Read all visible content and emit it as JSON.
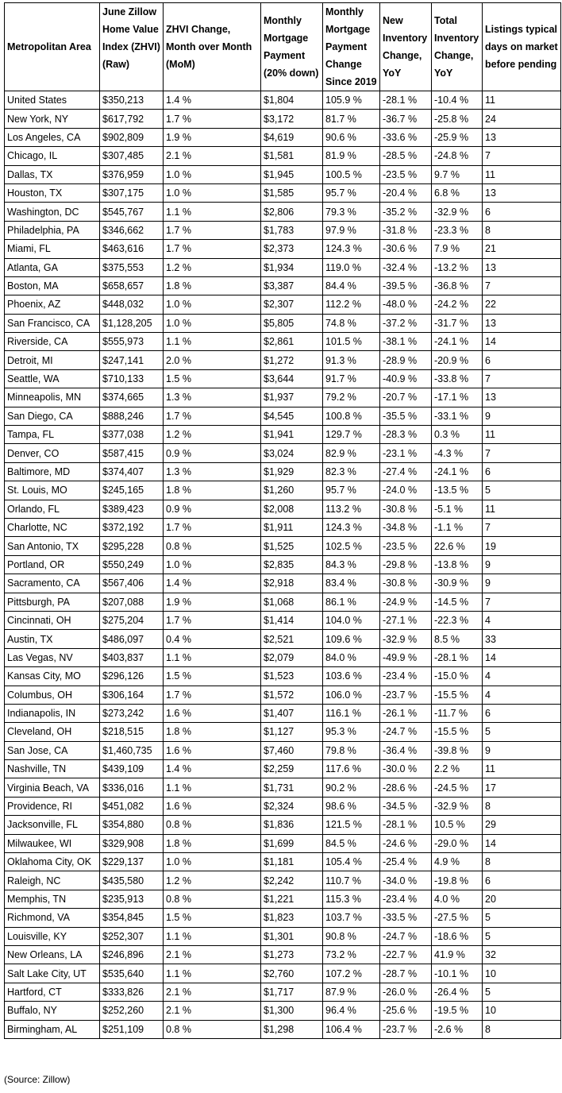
{
  "table": {
    "header": [
      "Metropolitan Area",
      "June Zillow Home Value Index (ZHVI) (Raw)",
      "ZHVI Change, Month over Month (MoM)",
      "Monthly Mortgage Payment (20% down)",
      "Monthly Mortgage Payment Change Since 2019",
      "New Inventory Change, YoY",
      "Total Inventory Change, YoY",
      "Listings typical days on market before pending"
    ],
    "rows": [
      [
        "United States",
        "$350,213",
        "1.4 %",
        "$1,804",
        "105.9 %",
        "-28.1 %",
        "-10.4 %",
        "11"
      ],
      [
        "New York, NY",
        "$617,792",
        "1.7 %",
        "$3,172",
        "81.7 %",
        "-36.7 %",
        "-25.8 %",
        "24"
      ],
      [
        "Los Angeles, CA",
        "$902,809",
        "1.9 %",
        "$4,619",
        "90.6 %",
        "-33.6 %",
        "-25.9 %",
        "13"
      ],
      [
        "Chicago, IL",
        "$307,485",
        "2.1 %",
        "$1,581",
        "81.9 %",
        "-28.5 %",
        "-24.8 %",
        "7"
      ],
      [
        "Dallas, TX",
        "$376,959",
        "1.0 %",
        "$1,945",
        "100.5 %",
        "-23.5 %",
        "9.7 %",
        "11"
      ],
      [
        "Houston, TX",
        "$307,175",
        "1.0 %",
        "$1,585",
        "95.7 %",
        "-20.4 %",
        "6.8 %",
        "13"
      ],
      [
        "Washington, DC",
        "$545,767",
        "1.1 %",
        "$2,806",
        "79.3 %",
        "-35.2 %",
        "-32.9 %",
        "6"
      ],
      [
        "Philadelphia, PA",
        "$346,662",
        "1.7 %",
        "$1,783",
        "97.9 %",
        "-31.8 %",
        "-23.3 %",
        "8"
      ],
      [
        "Miami, FL",
        "$463,616",
        "1.7 %",
        "$2,373",
        "124.3 %",
        "-30.6 %",
        "7.9 %",
        "21"
      ],
      [
        "Atlanta, GA",
        "$375,553",
        "1.2 %",
        "$1,934",
        "119.0 %",
        "-32.4 %",
        "-13.2 %",
        "13"
      ],
      [
        "Boston, MA",
        "$658,657",
        "1.8 %",
        "$3,387",
        "84.4 %",
        "-39.5 %",
        "-36.8 %",
        "7"
      ],
      [
        "Phoenix, AZ",
        "$448,032",
        "1.0 %",
        "$2,307",
        "112.2 %",
        "-48.0 %",
        "-24.2 %",
        "22"
      ],
      [
        "San Francisco, CA",
        "$1,128,205",
        "1.0 %",
        "$5,805",
        "74.8 %",
        "-37.2 %",
        "-31.7 %",
        "13"
      ],
      [
        "Riverside, CA",
        "$555,973",
        "1.1 %",
        "$2,861",
        "101.5 %",
        "-38.1 %",
        "-24.1 %",
        "14"
      ],
      [
        "Detroit, MI",
        "$247,141",
        "2.0 %",
        "$1,272",
        "91.3 %",
        "-28.9 %",
        "-20.9 %",
        "6"
      ],
      [
        "Seattle, WA",
        "$710,133",
        "1.5 %",
        "$3,644",
        "91.7 %",
        "-40.9 %",
        "-33.8 %",
        "7"
      ],
      [
        "Minneapolis, MN",
        "$374,665",
        "1.3 %",
        "$1,937",
        "79.2 %",
        "-20.7 %",
        "-17.1 %",
        "13"
      ],
      [
        "San Diego, CA",
        "$888,246",
        "1.7 %",
        "$4,545",
        "100.8 %",
        "-35.5 %",
        "-33.1 %",
        "9"
      ],
      [
        "Tampa, FL",
        "$377,038",
        "1.2 %",
        "$1,941",
        "129.7 %",
        "-28.3 %",
        "0.3 %",
        "11"
      ],
      [
        "Denver, CO",
        "$587,415",
        "0.9 %",
        "$3,024",
        "82.9 %",
        "-23.1 %",
        "-4.3 %",
        "7"
      ],
      [
        "Baltimore, MD",
        "$374,407",
        "1.3 %",
        "$1,929",
        "82.3 %",
        "-27.4 %",
        "-24.1 %",
        "6"
      ],
      [
        "St. Louis, MO",
        "$245,165",
        "1.8 %",
        "$1,260",
        "95.7 %",
        "-24.0 %",
        "-13.5 %",
        "5"
      ],
      [
        "Orlando, FL",
        "$389,423",
        "0.9 %",
        "$2,008",
        "113.2 %",
        "-30.8 %",
        "-5.1 %",
        "11"
      ],
      [
        "Charlotte, NC",
        "$372,192",
        "1.7 %",
        "$1,911",
        "124.3 %",
        "-34.8 %",
        "-1.1 %",
        "7"
      ],
      [
        "San Antonio, TX",
        "$295,228",
        "0.8 %",
        "$1,525",
        "102.5 %",
        "-23.5 %",
        "22.6 %",
        "19"
      ],
      [
        "Portland, OR",
        "$550,249",
        "1.0 %",
        "$2,835",
        "84.3 %",
        "-29.8 %",
        "-13.8 %",
        "9"
      ],
      [
        "Sacramento, CA",
        "$567,406",
        "1.4 %",
        "$2,918",
        "83.4 %",
        "-30.8 %",
        "-30.9 %",
        "9"
      ],
      [
        "Pittsburgh, PA",
        "$207,088",
        "1.9 %",
        "$1,068",
        "86.1 %",
        "-24.9 %",
        "-14.5 %",
        "7"
      ],
      [
        "Cincinnati, OH",
        "$275,204",
        "1.7 %",
        "$1,414",
        "104.0 %",
        "-27.1 %",
        "-22.3 %",
        "4"
      ],
      [
        "Austin, TX",
        "$486,097",
        "0.4 %",
        "$2,521",
        "109.6 %",
        "-32.9 %",
        "8.5 %",
        "33"
      ],
      [
        "Las Vegas, NV",
        "$403,837",
        "1.1 %",
        "$2,079",
        "84.0 %",
        "-49.9 %",
        "-28.1 %",
        "14"
      ],
      [
        "Kansas City, MO",
        "$296,126",
        "1.5 %",
        "$1,523",
        "103.6 %",
        "-23.4 %",
        "-15.0 %",
        "4"
      ],
      [
        "Columbus, OH",
        "$306,164",
        "1.7 %",
        "$1,572",
        "106.0 %",
        "-23.7 %",
        "-15.5 %",
        "4"
      ],
      [
        "Indianapolis, IN",
        "$273,242",
        "1.6 %",
        "$1,407",
        "116.1 %",
        "-26.1 %",
        "-11.7 %",
        "6"
      ],
      [
        "Cleveland, OH",
        "$218,515",
        "1.8 %",
        "$1,127",
        "95.3 %",
        "-24.7 %",
        "-15.5 %",
        "5"
      ],
      [
        "San Jose, CA",
        "$1,460,735",
        "1.6 %",
        "$7,460",
        "79.8 %",
        "-36.4 %",
        "-39.8 %",
        "9"
      ],
      [
        "Nashville, TN",
        "$439,109",
        "1.4 %",
        "$2,259",
        "117.6 %",
        "-30.0 %",
        "2.2 %",
        "11"
      ],
      [
        "Virginia Beach, VA",
        "$336,016",
        "1.1 %",
        "$1,731",
        "90.2 %",
        "-28.6 %",
        "-24.5 %",
        "17"
      ],
      [
        "Providence, RI",
        "$451,082",
        "1.6 %",
        "$2,324",
        "98.6 %",
        "-34.5 %",
        "-32.9 %",
        "8"
      ],
      [
        "Jacksonville, FL",
        "$354,880",
        "0.8 %",
        "$1,836",
        "121.5 %",
        "-28.1 %",
        "10.5 %",
        "29"
      ],
      [
        "Milwaukee, WI",
        "$329,908",
        "1.8 %",
        "$1,699",
        "84.5 %",
        "-24.6 %",
        "-29.0 %",
        "14"
      ],
      [
        "Oklahoma City, OK",
        "$229,137",
        "1.0 %",
        "$1,181",
        "105.4 %",
        "-25.4 %",
        "4.9 %",
        "8"
      ],
      [
        "Raleigh, NC",
        "$435,580",
        "1.2 %",
        "$2,242",
        "110.7 %",
        "-34.0 %",
        "-19.8 %",
        "6"
      ],
      [
        "Memphis, TN",
        "$235,913",
        "0.8 %",
        "$1,221",
        "115.3 %",
        "-23.4 %",
        "4.0 %",
        "20"
      ],
      [
        "Richmond, VA",
        "$354,845",
        "1.5 %",
        "$1,823",
        "103.7 %",
        "-33.5 %",
        "-27.5 %",
        "5"
      ],
      [
        "Louisville, KY",
        "$252,307",
        "1.1 %",
        "$1,301",
        "90.8 %",
        "-24.7 %",
        "-18.6 %",
        "5"
      ],
      [
        "New Orleans, LA",
        "$246,896",
        "2.1 %",
        "$1,273",
        "73.2 %",
        "-22.7 %",
        "41.9 %",
        "32"
      ],
      [
        "Salt Lake City, UT",
        "$535,640",
        "1.1 %",
        "$2,760",
        "107.2 %",
        "-28.7 %",
        "-10.1 %",
        "10"
      ],
      [
        "Hartford, CT",
        "$333,826",
        "2.1 %",
        "$1,717",
        "87.9 %",
        "-26.0 %",
        "-26.4 %",
        "5"
      ],
      [
        "Buffalo, NY",
        "$252,260",
        "2.1 %",
        "$1,300",
        "96.4 %",
        "-25.6 %",
        "-19.5 %",
        "10"
      ],
      [
        "Birmingham, AL",
        "$251,109",
        "0.8 %",
        "$1,298",
        "106.4 %",
        "-23.7 %",
        "-2.6 %",
        "8"
      ]
    ]
  },
  "source": "(Source: Zillow)"
}
